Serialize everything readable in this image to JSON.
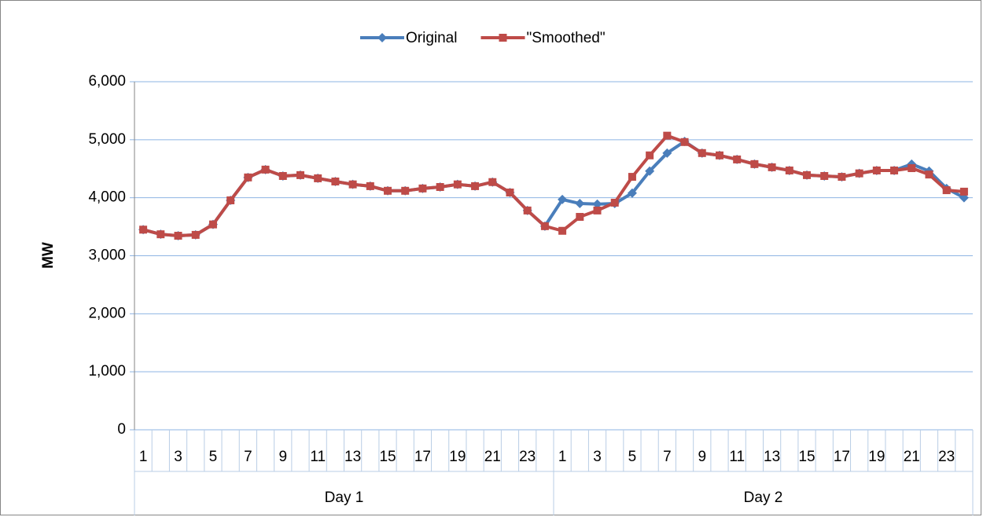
{
  "chart_data": {
    "type": "line",
    "y_label": "MW",
    "categories": [
      "1",
      null,
      "3",
      null,
      "5",
      null,
      "7",
      null,
      "9",
      null,
      "11",
      null,
      "13",
      null,
      "15",
      null,
      "17",
      null,
      "19",
      null,
      "21",
      null,
      "23",
      null,
      "1",
      null,
      "3",
      null,
      "5",
      null,
      "7",
      null,
      "9",
      null,
      "11",
      null,
      "13",
      null,
      "15",
      null,
      "17",
      null,
      "19",
      null,
      "21",
      null,
      "23",
      null
    ],
    "groups": [
      "Day 1",
      "Day 2"
    ],
    "series": [
      {
        "name": "Original",
        "color": "#4a7ebb",
        "marker": "diamond",
        "values": [
          3450,
          3370,
          3345,
          3360,
          3540,
          3955,
          4350,
          4485,
          4375,
          4390,
          4335,
          4280,
          4230,
          4200,
          4120,
          4120,
          4160,
          4185,
          4230,
          4200,
          4270,
          4090,
          3780,
          3510,
          3970,
          3900,
          3890,
          3900,
          4080,
          4460,
          4770,
          4970,
          4770,
          4730,
          4660,
          4580,
          4525,
          4470,
          4390,
          4375,
          4360,
          4420,
          4470,
          4470,
          4580,
          4460,
          4160,
          4000
        ]
      },
      {
        "name": "\"Smoothed\"",
        "color": "#be4b48",
        "marker": "square",
        "values": [
          3450,
          3370,
          3345,
          3360,
          3540,
          3955,
          4350,
          4485,
          4375,
          4390,
          4335,
          4280,
          4230,
          4200,
          4120,
          4120,
          4160,
          4185,
          4230,
          4200,
          4270,
          4090,
          3780,
          3510,
          3430,
          3670,
          3780,
          3915,
          4360,
          4730,
          5070,
          4960,
          4770,
          4730,
          4660,
          4580,
          4525,
          4470,
          4390,
          4375,
          4360,
          4420,
          4470,
          4470,
          4510,
          4400,
          4130,
          4105
        ]
      }
    ],
    "ylim": [
      0,
      6000
    ],
    "yticks": [
      0,
      {
        "value": 1000,
        "label": "1,000"
      },
      {
        "value": 2000,
        "label": "2,000"
      },
      {
        "value": 3000,
        "label": "3,000"
      },
      {
        "value": 4000,
        "label": "4,000"
      },
      {
        "value": 5000,
        "label": "5,000"
      },
      {
        "value": 6000,
        "label": "6,000"
      }
    ],
    "grid": true,
    "legend": "top"
  }
}
